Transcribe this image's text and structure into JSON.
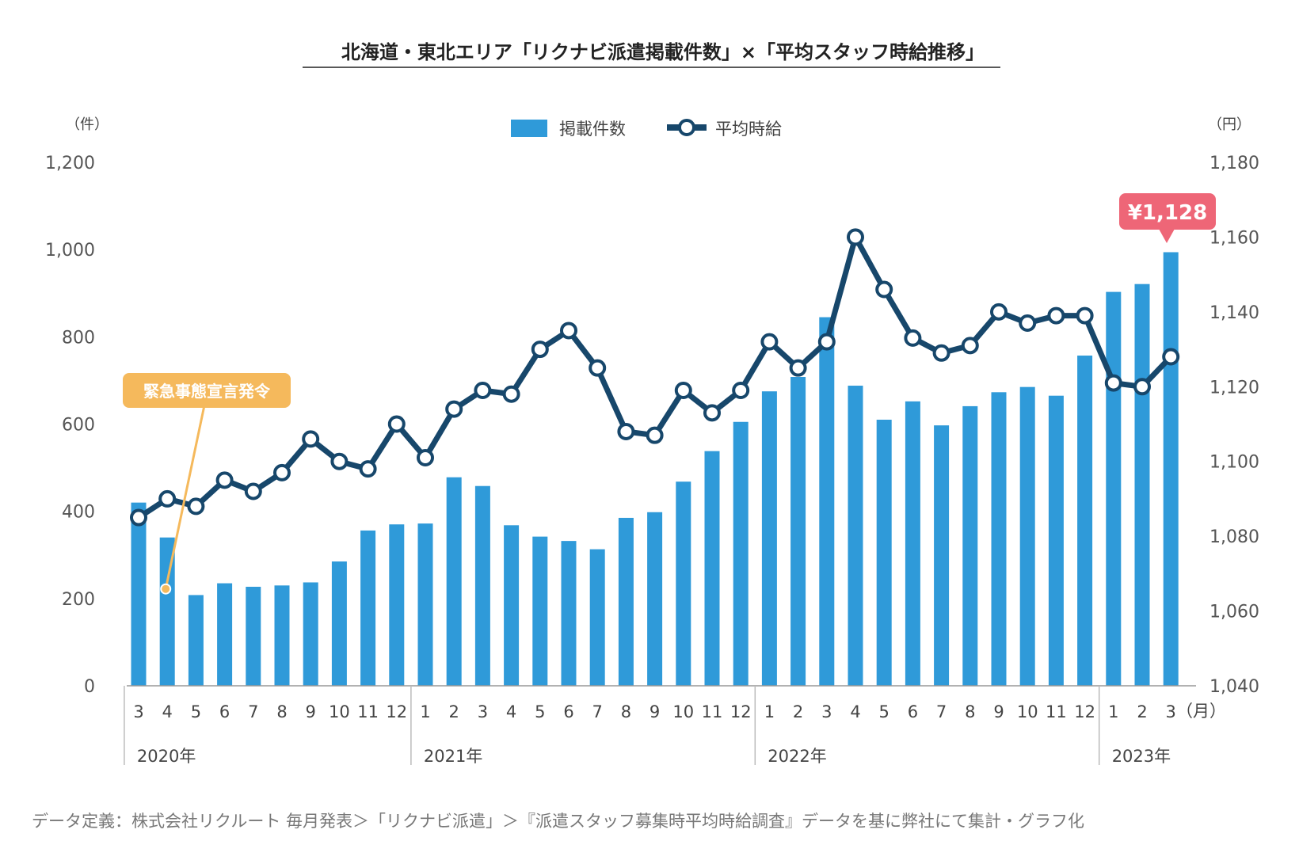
{
  "chart_data": {
    "type": "bar+line",
    "title": "北海道・東北エリア「リクナビ派遣掲載件数」×「平均スタッフ時給推移」",
    "left_axis_unit": "（件）",
    "right_axis_unit": "（円）",
    "month_unit": "（月）",
    "left_ylim": [
      0,
      1200
    ],
    "left_ticks": [
      "0",
      "200",
      "400",
      "600",
      "800",
      "1,000",
      "1,200"
    ],
    "right_ylim": [
      1040,
      1180
    ],
    "right_ticks": [
      "1,040",
      "1,060",
      "1,080",
      "1,100",
      "1,120",
      "1,140",
      "1,160",
      "1,180"
    ],
    "months": [
      "3",
      "4",
      "5",
      "6",
      "7",
      "8",
      "9",
      "10",
      "11",
      "12",
      "1",
      "2",
      "3",
      "4",
      "5",
      "6",
      "7",
      "8",
      "9",
      "10",
      "11",
      "12",
      "1",
      "2",
      "3",
      "4",
      "5",
      "6",
      "7",
      "8",
      "9",
      "10",
      "11",
      "12",
      "1",
      "2",
      "3"
    ],
    "years": [
      {
        "label": "2020年",
        "start": 0,
        "count": 10
      },
      {
        "label": "2021年",
        "start": 10,
        "count": 12
      },
      {
        "label": "2022年",
        "start": 22,
        "count": 12
      },
      {
        "label": "2023年",
        "start": 34,
        "count": 3
      }
    ],
    "series": [
      {
        "name": "掲載件数",
        "type": "bar",
        "axis": "left",
        "color": "#2f9ad9",
        "values": [
          420,
          340,
          208,
          235,
          227,
          230,
          237,
          285,
          356,
          370,
          372,
          478,
          458,
          368,
          342,
          332,
          313,
          385,
          398,
          468,
          538,
          605,
          675,
          708,
          845,
          688,
          610,
          652,
          597,
          641,
          673,
          685,
          665,
          757,
          903,
          921,
          994
        ]
      },
      {
        "name": "平均時給",
        "type": "line",
        "axis": "right",
        "color": "#17476b",
        "values": [
          1085,
          1090,
          1088,
          1095,
          1092,
          1097,
          1106,
          1100,
          1098,
          1110,
          1101,
          1114,
          1119,
          1118,
          1130,
          1135,
          1125,
          1108,
          1107,
          1119,
          1113,
          1119,
          1132,
          1125,
          1132,
          1160,
          1146,
          1133,
          1129,
          1131,
          1140,
          1137,
          1139,
          1139,
          1121,
          1120,
          1128
        ]
      }
    ],
    "annotations": [
      {
        "text": "緊急事態宣言発令",
        "index": 1,
        "color": "#f5b95c"
      },
      {
        "text": "¥1,128",
        "index": 36,
        "color": "#ee6677"
      }
    ],
    "legend_position": "top-center",
    "footer": "データ定義：株式会社リクルート 毎月発表＞「リクナビ派遣」＞『派遣スタッフ募集時平均時給調査』データを基に弊社にて集計・グラフ化"
  }
}
